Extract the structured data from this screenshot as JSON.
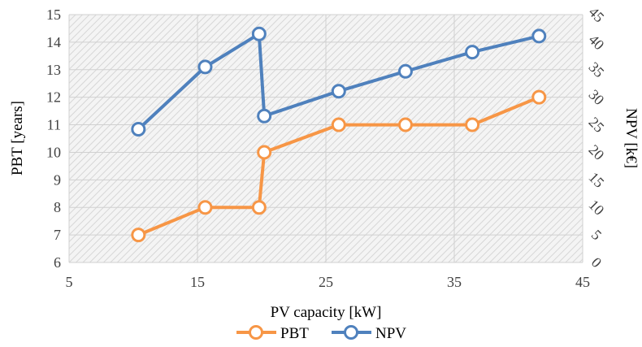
{
  "chart_data": {
    "type": "line",
    "title": "",
    "xlabel": "PV capacity [kW]",
    "ylabel": "PBT [years]",
    "y2label": "NPV [k€]",
    "xlim": [
      5,
      45
    ],
    "ylim": [
      6,
      15
    ],
    "y2lim": [
      0,
      45
    ],
    "x_ticks": [
      5,
      15,
      25,
      35,
      45
    ],
    "y_ticks": [
      6,
      7,
      8,
      9,
      10,
      11,
      12,
      13,
      14,
      15
    ],
    "y2_ticks": [
      0,
      5,
      10,
      15,
      20,
      25,
      30,
      35,
      40,
      45
    ],
    "grid": true,
    "legend_position": "bottom",
    "series": [
      {
        "name": "PBT",
        "axis": "left",
        "color": "#F79646",
        "x": [
          10.4,
          15.6,
          19.8,
          20.2,
          26,
          31.2,
          36.4,
          41.6
        ],
        "y": [
          7,
          8,
          8,
          10,
          11,
          11,
          11,
          12
        ]
      },
      {
        "name": "NPV",
        "axis": "right",
        "color": "#4F81BD",
        "x": [
          10.4,
          15.6,
          19.8,
          20.2,
          26,
          31.2,
          36.4,
          41.6
        ],
        "y": [
          24.2,
          35.5,
          41.5,
          26.6,
          31.1,
          34.7,
          38.2,
          41.1
        ]
      }
    ]
  }
}
